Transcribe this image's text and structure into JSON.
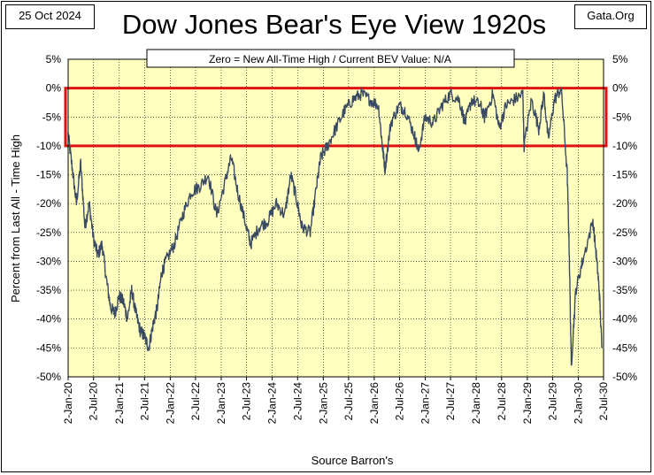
{
  "header": {
    "date": "25 Oct 2024",
    "title": "Dow Jones Bear's Eye View 1920s",
    "brand": "Gata.Org"
  },
  "chart_data": {
    "type": "line",
    "title": "Dow Jones Bear's Eye View 1920s",
    "subtitle": "Zero = New All-Time High / Current BEV Value:  N/A",
    "xlabel": "Source Barron's",
    "ylabel": "Percent  from  Last  All - Time High",
    "ylim": [
      -50,
      5
    ],
    "xlim": [
      "1920-01-02",
      "1930-07-02"
    ],
    "grid": true,
    "y_ticks_left": [
      "5%",
      "0%",
      "-5%",
      "-10%",
      "-15%",
      "-20%",
      "-25%",
      "-30%",
      "-35%",
      "-40%",
      "-45%",
      "-50%"
    ],
    "y_ticks_right": [
      "5%",
      "0%",
      "-5%",
      "-10%",
      "-15%",
      "-20%",
      "-25%",
      "-30%",
      "-35%",
      "-40%",
      "-45%",
      "-50%"
    ],
    "x_ticks": [
      "2-Jan-20",
      "2-Jul-20",
      "2-Jan-21",
      "2-Jul-21",
      "2-Jan-22",
      "2-Jul-22",
      "2-Jan-23",
      "2-Jul-23",
      "2-Jan-24",
      "2-Jul-24",
      "2-Jan-25",
      "2-Jul-25",
      "2-Jan-26",
      "2-Jul-26",
      "2-Jan-27",
      "2-Jul-27",
      "2-Jan-28",
      "2-Jul-28",
      "2-Jan-29",
      "2-Jul-29",
      "2-Jan-30",
      "2-Jul-30"
    ],
    "highlight_band": [
      -10,
      0
    ],
    "series": [
      {
        "color": "#3b4a63",
        "x": [
          "1920-01-02",
          "1920-02-01",
          "1920-03-01",
          "1920-04-01",
          "1920-05-01",
          "1920-06-01",
          "1920-07-01",
          "1920-08-01",
          "1920-09-01",
          "1920-10-01",
          "1920-11-01",
          "1920-12-01",
          "1921-01-01",
          "1921-02-01",
          "1921-03-01",
          "1921-04-01",
          "1921-05-01",
          "1921-06-01",
          "1921-07-01",
          "1921-08-01",
          "1921-09-01",
          "1921-10-01",
          "1921-11-01",
          "1921-12-01",
          "1922-02-01",
          "1922-04-01",
          "1922-06-01",
          "1922-08-01",
          "1922-10-01",
          "1922-12-01",
          "1923-02-01",
          "1923-03-15",
          "1923-05-01",
          "1923-07-01",
          "1923-08-01",
          "1923-10-01",
          "1923-12-01",
          "1924-02-01",
          "1924-04-01",
          "1924-05-15",
          "1924-07-01",
          "1924-08-01",
          "1924-10-01",
          "1924-11-15",
          "1924-12-15",
          "1925-02-01",
          "1925-04-01",
          "1925-06-01",
          "1925-08-01",
          "1925-10-01",
          "1925-12-01",
          "1926-02-01",
          "1926-03-01",
          "1926-03-20",
          "1926-05-01",
          "1926-07-01",
          "1926-08-15",
          "1926-10-15",
          "1926-11-15",
          "1927-01-01",
          "1927-03-01",
          "1927-05-01",
          "1927-07-01",
          "1927-09-01",
          "1927-10-15",
          "1927-12-01",
          "1928-02-01",
          "1928-03-01",
          "1928-05-01",
          "1928-06-15",
          "1928-08-01",
          "1928-10-01",
          "1928-12-01",
          "1928-12-10",
          "1929-02-01",
          "1929-03-25",
          "1929-05-01",
          "1929-06-01",
          "1929-07-15",
          "1929-09-03",
          "1929-10-15",
          "1929-10-29",
          "1929-11-13",
          "1929-12-15",
          "1930-02-01",
          "1930-04-17",
          "1930-05-15",
          "1930-06-01",
          "1930-06-20"
        ],
        "y": [
          -8,
          -14,
          -20,
          -13,
          -24,
          -20,
          -26,
          -29,
          -27,
          -33,
          -38,
          -39,
          -36,
          -37,
          -40,
          -35,
          -39,
          -42,
          -43,
          -45,
          -41,
          -38,
          -32,
          -30,
          -27,
          -22,
          -18,
          -17,
          -15,
          -22,
          -16,
          -12,
          -18,
          -24,
          -27,
          -24,
          -23,
          -20,
          -22,
          -15,
          -20,
          -24,
          -25,
          -17,
          -12,
          -10,
          -7,
          -4,
          -2,
          -1,
          -2,
          -3,
          -10,
          -14,
          -6,
          -3,
          -4,
          -8,
          -11,
          -5,
          -6,
          -3,
          -1,
          -2,
          -6,
          -2,
          -3,
          -5,
          -1,
          -7,
          -3,
          -2,
          -1,
          -10,
          -2,
          -7,
          -1,
          -9,
          -2,
          0,
          -15,
          -28,
          -48,
          -35,
          -30,
          -23,
          -30,
          -35,
          -45
        ]
      }
    ]
  }
}
